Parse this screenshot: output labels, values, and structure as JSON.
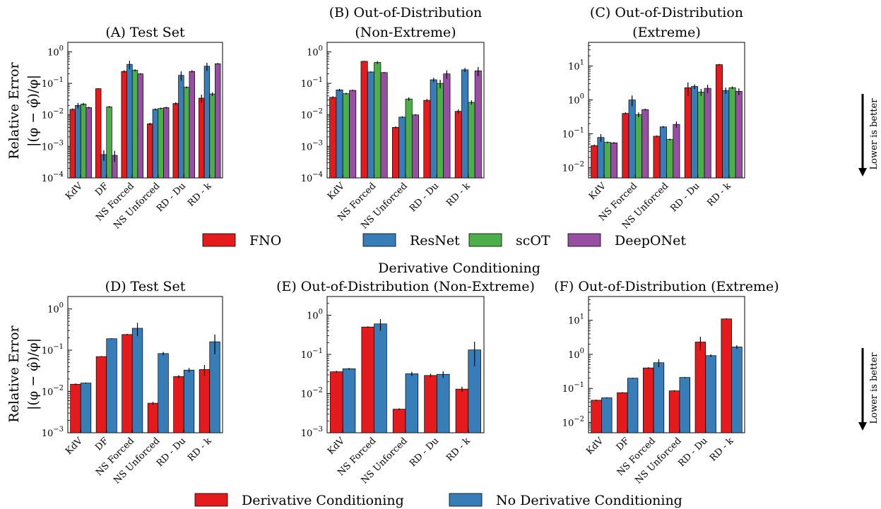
{
  "figure": {
    "ylabel_text": "Relative Error",
    "ylabel_formula": "|(φ − φ̂)/φ|",
    "side_note": "Lower is better",
    "section_title": "Derivative Conditioning"
  },
  "legend_top": [
    "FNO",
    "ResNet",
    "scOT",
    "DeepONet"
  ],
  "legend_bottom": [
    "Derivative Conditioning",
    "No Derivative Conditioning"
  ],
  "colors": {
    "FNO": "#e41a1c",
    "ResNet": "#377eb8",
    "scOT": "#4daf4a",
    "DeepONet": "#984ea3",
    "Derivative Conditioning": "#e41a1c",
    "No Derivative Conditioning": "#377eb8"
  },
  "chart_data": [
    {
      "type": "bar",
      "scale": "log",
      "title": "(A) Test Set",
      "ylim": [
        0.0001,
        2
      ],
      "yticks": [
        -4,
        -3,
        -2,
        -1,
        0
      ],
      "categories": [
        "KdV",
        "DF",
        "NS Forced",
        "NS Unforced",
        "RD - Du",
        "RD - k"
      ],
      "series": [
        {
          "name": "FNO",
          "values": [
            0.015,
            0.068,
            0.24,
            0.0052,
            0.023,
            0.034
          ],
          "errors": [
            0.001,
            0.002,
            0.02,
            0.0004,
            0.002,
            0.01
          ]
        },
        {
          "name": "ResNet",
          "values": [
            0.02,
            0.00055,
            0.4,
            0.015,
            0.18,
            0.35
          ],
          "errors": [
            0.004,
            0.0002,
            0.12,
            0.001,
            0.06,
            0.1
          ]
        },
        {
          "name": "scOT",
          "values": [
            0.022,
            0.018,
            0.26,
            0.016,
            0.075,
            0.046
          ],
          "errors": [
            0.002,
            0.001,
            0.02,
            0.001,
            0.005,
            0.006
          ]
        },
        {
          "name": "DeepONet",
          "values": [
            0.017,
            0.00052,
            0.2,
            0.017,
            0.24,
            0.42
          ],
          "errors": [
            0.001,
            0.0002,
            0.01,
            0.001,
            0.02,
            0.02
          ]
        }
      ]
    },
    {
      "type": "bar",
      "scale": "log",
      "title": [
        "(B) Out-of-Distribution",
        "(Non-Extreme)"
      ],
      "ylim": [
        0.0001,
        2
      ],
      "yticks": [
        -4,
        -3,
        -2,
        -1,
        0
      ],
      "categories": [
        "KdV",
        "NS Forced",
        "NS Unforced",
        "RD - Du",
        "RD - k"
      ],
      "series": [
        {
          "name": "FNO",
          "values": [
            0.036,
            0.5,
            0.004,
            0.029,
            0.013
          ],
          "errors": [
            0.003,
            0.02,
            0.0003,
            0.003,
            0.002
          ]
        },
        {
          "name": "ResNet",
          "values": [
            0.062,
            0.23,
            0.0085,
            0.13,
            0.27
          ],
          "errors": [
            0.005,
            0.01,
            0.0005,
            0.02,
            0.04
          ]
        },
        {
          "name": "scOT",
          "values": [
            0.047,
            0.46,
            0.032,
            0.1,
            0.025
          ],
          "errors": [
            0.003,
            0.05,
            0.004,
            0.03,
            0.004
          ]
        },
        {
          "name": "DeepONet",
          "values": [
            0.06,
            0.22,
            0.01,
            0.2,
            0.25
          ],
          "errors": [
            0.003,
            0.01,
            0.0005,
            0.06,
            0.08
          ]
        }
      ]
    },
    {
      "type": "bar",
      "scale": "log",
      "title": [
        "(C) Out-of-Distribution",
        "(Extreme)"
      ],
      "ylim": [
        0.005,
        50
      ],
      "yticks": [
        -2,
        -1,
        0,
        1
      ],
      "categories": [
        "KdV",
        "NS Forced",
        "NS Unforced",
        "RD - Du",
        "RD - k"
      ],
      "series": [
        {
          "name": "FNO",
          "values": [
            0.045,
            0.4,
            0.085,
            2.3,
            11
          ],
          "errors": [
            0.003,
            0.03,
            0.005,
            1.0,
            0.5
          ]
        },
        {
          "name": "ResNet",
          "values": [
            0.078,
            1.0,
            0.16,
            2.5,
            1.9
          ],
          "errors": [
            0.02,
            0.35,
            0.01,
            0.4,
            0.4
          ]
        },
        {
          "name": "scOT",
          "values": [
            0.056,
            0.37,
            0.068,
            1.7,
            2.3
          ],
          "errors": [
            0.003,
            0.06,
            0.004,
            0.4,
            0.2
          ]
        },
        {
          "name": "DeepONet",
          "values": [
            0.054,
            0.52,
            0.19,
            2.2,
            1.8
          ],
          "errors": [
            0.003,
            0.03,
            0.04,
            0.6,
            0.4
          ]
        }
      ]
    },
    {
      "type": "bar",
      "scale": "log",
      "title": "(D) Test Set",
      "ylim": [
        0.001,
        2
      ],
      "yticks": [
        -3,
        -2,
        -1,
        0
      ],
      "categories": [
        "KdV",
        "DF",
        "NS Forced",
        "NS Unforced",
        "RD - Du",
        "RD - k"
      ],
      "series": [
        {
          "name": "Derivative Conditioning",
          "values": [
            0.015,
            0.07,
            0.24,
            0.0052,
            0.023,
            0.034
          ],
          "errors": [
            0.0006,
            0.002,
            0.01,
            0.0004,
            0.002,
            0.01
          ]
        },
        {
          "name": "No Derivative Conditioning",
          "values": [
            0.016,
            0.19,
            0.34,
            0.083,
            0.033,
            0.16
          ],
          "errors": [
            0.0005,
            0.005,
            0.12,
            0.008,
            0.004,
            0.08
          ]
        }
      ]
    },
    {
      "type": "bar",
      "scale": "log",
      "title": "(E) Out-of-Distribution (Non-Extreme)",
      "ylim": [
        0.001,
        3
      ],
      "yticks": [
        -3,
        -2,
        -1,
        0
      ],
      "categories": [
        "KdV",
        "NS Forced",
        "NS Unforced",
        "RD - Du",
        "RD - k"
      ],
      "series": [
        {
          "name": "Derivative Conditioning",
          "values": [
            0.036,
            0.5,
            0.004,
            0.029,
            0.013
          ],
          "errors": [
            0.002,
            0.02,
            0.0002,
            0.003,
            0.002
          ]
        },
        {
          "name": "No Derivative Conditioning",
          "values": [
            0.043,
            0.6,
            0.032,
            0.031,
            0.13
          ],
          "errors": [
            0.002,
            0.2,
            0.004,
            0.006,
            0.08
          ]
        }
      ]
    },
    {
      "type": "bar",
      "scale": "log",
      "title": "(F) Out-of-Distribution (Extreme)",
      "ylim": [
        0.005,
        50
      ],
      "yticks": [
        -2,
        -1,
        0,
        1
      ],
      "categories": [
        "KdV",
        "DF",
        "NS Forced",
        "NS Unforced",
        "RD - Du",
        "RD - k"
      ],
      "series": [
        {
          "name": "Derivative Conditioning",
          "values": [
            0.045,
            0.075,
            0.4,
            0.085,
            2.3,
            11
          ],
          "errors": [
            0.002,
            0.003,
            0.02,
            0.004,
            1.0,
            0.4
          ]
        },
        {
          "name": "No Derivative Conditioning",
          "values": [
            0.053,
            0.2,
            0.57,
            0.21,
            0.92,
            1.65
          ],
          "errors": [
            0.002,
            0.006,
            0.15,
            0.008,
            0.08,
            0.2
          ]
        }
      ]
    }
  ]
}
